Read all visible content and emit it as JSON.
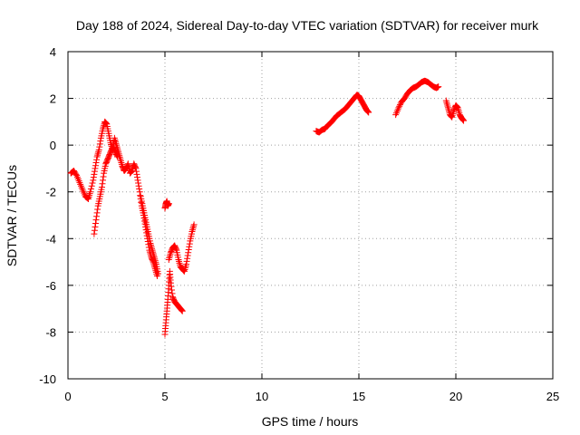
{
  "chart_data": {
    "type": "scatter",
    "title": "Day 188 of 2024, Sidereal Day-to-day VTEC variation (SDTVAR) for receiver murk",
    "xlabel": "GPS time / hours",
    "ylabel": "SDTVAR / TECUs",
    "xlim": [
      0,
      25
    ],
    "ylim": [
      -10,
      4
    ],
    "xticks": [
      0,
      5,
      10,
      15,
      20,
      25
    ],
    "yticks": [
      -10,
      -8,
      -6,
      -4,
      -2,
      0,
      2,
      4
    ],
    "xtick_labels": [
      "0",
      "5",
      "10",
      "15",
      "20",
      "25"
    ],
    "ytick_labels": [
      "-10",
      "-8",
      "-6",
      "-4",
      "-2",
      "0",
      "2",
      "4"
    ],
    "grid": true,
    "marker": "plus",
    "color": "#ff0000",
    "series": [
      {
        "x": [
          0.15,
          0.3,
          0.45,
          0.6,
          0.75,
          0.9,
          1.05,
          1.15,
          1.3,
          1.4,
          1.5,
          1.6,
          1.7,
          1.8,
          1.9,
          2.0,
          2.1,
          2.2,
          2.3,
          2.4,
          2.5,
          2.6,
          2.7,
          2.8,
          2.9,
          3.0,
          3.1,
          3.2,
          3.3,
          3.4,
          3.5,
          3.6,
          3.7,
          3.8,
          3.9,
          4.0,
          4.1,
          4.2,
          4.3,
          4.4,
          4.5,
          4.6
        ],
        "y": [
          -1.2,
          -1.1,
          -1.3,
          -1.6,
          -1.9,
          -2.2,
          -2.3,
          -2.0,
          -1.5,
          -1.0,
          -0.5,
          -0.2,
          0.3,
          0.7,
          1.0,
          0.9,
          0.5,
          0.1,
          -0.2,
          0.3,
          0.0,
          -0.3,
          -0.6,
          -0.9,
          -1.1,
          -1.0,
          -0.8,
          -1.2,
          -1.1,
          -0.8,
          -1.0,
          -1.5,
          -2.0,
          -2.6,
          -3.0,
          -3.5,
          -4.0,
          -4.5,
          -4.8,
          -5.0,
          -5.3,
          -5.6
        ]
      },
      {
        "x": [
          1.35,
          1.45,
          1.55,
          1.65,
          1.75,
          1.85,
          1.95,
          2.05,
          2.15,
          2.25,
          2.35,
          2.45,
          2.55
        ],
        "y": [
          -3.8,
          -3.2,
          -2.6,
          -2.2,
          -1.8,
          -1.2,
          -0.8,
          -0.6,
          -0.4,
          -0.2,
          -0.1,
          -0.3,
          -0.5
        ]
      },
      {
        "x": [
          3.75,
          3.85,
          3.95,
          4.05,
          4.15,
          4.25,
          4.35,
          4.45,
          4.55,
          4.65
        ],
        "y": [
          -2.2,
          -2.6,
          -3.0,
          -3.4,
          -3.8,
          -4.2,
          -4.5,
          -4.8,
          -5.1,
          -5.5
        ]
      },
      {
        "x": [
          5.0,
          5.05,
          5.1,
          5.15,
          5.2
        ],
        "y": [
          -2.7,
          -2.5,
          -2.4,
          -2.6,
          -2.5
        ]
      },
      {
        "x": [
          5.0,
          5.05,
          5.1,
          5.15,
          5.2,
          5.25,
          5.3,
          5.4,
          5.5,
          5.6,
          5.7,
          5.8,
          5.9
        ],
        "y": [
          -8.1,
          -7.6,
          -7.1,
          -6.6,
          -6.0,
          -5.4,
          -5.9,
          -6.5,
          -6.7,
          -6.8,
          -6.9,
          -7.0,
          -7.1
        ]
      },
      {
        "x": [
          5.2,
          5.3,
          5.4,
          5.5,
          5.6,
          5.7,
          5.8,
          5.9,
          6.0,
          6.1,
          6.2,
          6.3,
          6.4,
          6.5
        ],
        "y": [
          -4.9,
          -4.6,
          -4.4,
          -4.3,
          -4.5,
          -4.9,
          -5.2,
          -5.3,
          -5.4,
          -5.1,
          -4.6,
          -4.1,
          -3.7,
          -3.4
        ]
      },
      {
        "x": [
          12.8,
          12.95,
          13.1,
          13.25,
          13.4,
          13.55,
          13.7,
          13.85,
          14.0,
          14.15,
          14.3,
          14.45,
          14.6,
          14.75,
          14.9,
          15.0,
          15.1,
          15.2,
          15.3,
          15.4,
          15.5
        ],
        "y": [
          0.6,
          0.55,
          0.65,
          0.7,
          0.85,
          0.95,
          1.1,
          1.25,
          1.35,
          1.45,
          1.55,
          1.7,
          1.85,
          2.0,
          2.15,
          2.1,
          1.95,
          1.8,
          1.65,
          1.5,
          1.4
        ]
      },
      {
        "x": [
          16.9,
          17.05,
          17.2,
          17.35,
          17.5,
          17.65,
          17.8,
          17.95,
          18.1,
          18.25,
          18.4,
          18.55,
          18.7,
          18.85,
          19.0,
          19.1
        ],
        "y": [
          1.3,
          1.6,
          1.85,
          2.0,
          2.2,
          2.35,
          2.45,
          2.5,
          2.6,
          2.7,
          2.75,
          2.7,
          2.6,
          2.5,
          2.45,
          2.5
        ]
      },
      {
        "x": [
          19.5,
          19.6,
          19.7,
          19.8,
          19.9,
          20.0,
          20.1,
          20.2,
          20.3,
          20.4
        ],
        "y": [
          1.9,
          1.6,
          1.3,
          1.2,
          1.5,
          1.7,
          1.6,
          1.3,
          1.15,
          1.05
        ]
      }
    ]
  }
}
